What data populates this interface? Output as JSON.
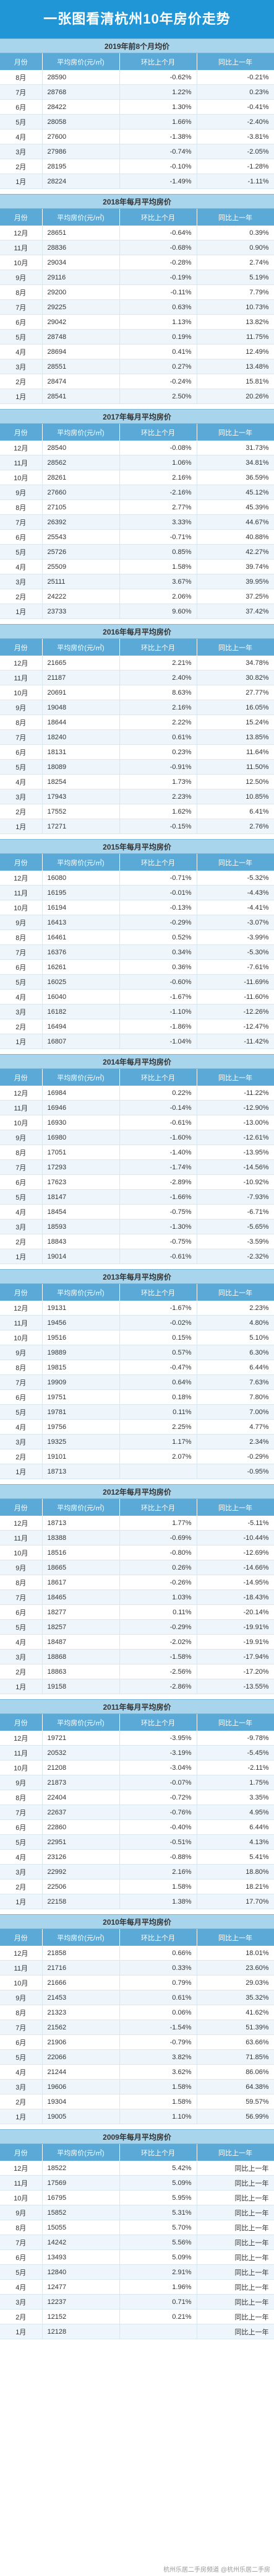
{
  "title": "一张图看清杭州10年房价走势",
  "headers": [
    "月份",
    "平均房价(元/㎡)",
    "环比上个月",
    "同比上一年"
  ],
  "footer": "杭州乐居二手房频道 @杭州乐居二手房",
  "sections": [
    {
      "title": "2019年前8个月均价",
      "rows": [
        [
          "8月",
          "28590",
          "-0.62%",
          "-0.21%"
        ],
        [
          "7月",
          "28768",
          "1.22%",
          "0.23%"
        ],
        [
          "6月",
          "28422",
          "1.30%",
          "-0.41%"
        ],
        [
          "5月",
          "28058",
          "1.66%",
          "-2.40%"
        ],
        [
          "4月",
          "27600",
          "-1.38%",
          "-3.81%"
        ],
        [
          "3月",
          "27986",
          "-0.74%",
          "-2.05%"
        ],
        [
          "2月",
          "28195",
          "-0.10%",
          "-1.28%"
        ],
        [
          "1月",
          "28224",
          "-1.49%",
          "-1.11%"
        ]
      ]
    },
    {
      "title": "2018年每月平均房价",
      "rows": [
        [
          "12月",
          "28651",
          "-0.64%",
          "0.39%"
        ],
        [
          "11月",
          "28836",
          "-0.68%",
          "0.90%"
        ],
        [
          "10月",
          "29034",
          "-0.28%",
          "2.74%"
        ],
        [
          "9月",
          "29116",
          "-0.19%",
          "5.19%"
        ],
        [
          "8月",
          "29200",
          "-0.11%",
          "7.79%"
        ],
        [
          "7月",
          "29225",
          "0.63%",
          "10.73%"
        ],
        [
          "6月",
          "29042",
          "1.13%",
          "13.82%"
        ],
        [
          "5月",
          "28748",
          "0.19%",
          "11.75%"
        ],
        [
          "4月",
          "28694",
          "0.41%",
          "12.49%"
        ],
        [
          "3月",
          "28551",
          "0.27%",
          "13.48%"
        ],
        [
          "2月",
          "28474",
          "-0.24%",
          "15.81%"
        ],
        [
          "1月",
          "28541",
          "2.50%",
          "20.26%"
        ]
      ]
    },
    {
      "title": "2017年每月平均房价",
      "rows": [
        [
          "12月",
          "28540",
          "-0.08%",
          "31.73%"
        ],
        [
          "11月",
          "28562",
          "1.06%",
          "34.81%"
        ],
        [
          "10月",
          "28261",
          "2.16%",
          "36.59%"
        ],
        [
          "9月",
          "27660",
          "-2.16%",
          "45.12%"
        ],
        [
          "8月",
          "27105",
          "2.77%",
          "45.39%"
        ],
        [
          "7月",
          "26392",
          "3.33%",
          "44.67%"
        ],
        [
          "6月",
          "25543",
          "-0.71%",
          "40.88%"
        ],
        [
          "5月",
          "25726",
          "0.85%",
          "42.27%"
        ],
        [
          "4月",
          "25509",
          "1.58%",
          "39.74%"
        ],
        [
          "3月",
          "25111",
          "3.67%",
          "39.95%"
        ],
        [
          "2月",
          "24222",
          "2.06%",
          "37.25%"
        ],
        [
          "1月",
          "23733",
          "9.60%",
          "37.42%"
        ]
      ]
    },
    {
      "title": "2016年每月平均房价",
      "rows": [
        [
          "12月",
          "21665",
          "2.21%",
          "34.78%"
        ],
        [
          "11月",
          "21187",
          "2.40%",
          "30.82%"
        ],
        [
          "10月",
          "20691",
          "8.63%",
          "27.77%"
        ],
        [
          "9月",
          "19048",
          "2.16%",
          "16.05%"
        ],
        [
          "8月",
          "18644",
          "2.22%",
          "15.24%"
        ],
        [
          "7月",
          "18240",
          "0.61%",
          "13.85%"
        ],
        [
          "6月",
          "18131",
          "0.23%",
          "11.64%"
        ],
        [
          "5月",
          "18089",
          "-0.91%",
          "11.50%"
        ],
        [
          "4月",
          "18254",
          "1.73%",
          "12.50%"
        ],
        [
          "3月",
          "17943",
          "2.23%",
          "10.85%"
        ],
        [
          "2月",
          "17552",
          "1.62%",
          "6.41%"
        ],
        [
          "1月",
          "17271",
          "-0.15%",
          "2.76%"
        ]
      ]
    },
    {
      "title": "2015年每月平均房价",
      "rows": [
        [
          "12月",
          "16080",
          "-0.71%",
          "-5.32%"
        ],
        [
          "11月",
          "16195",
          "-0.01%",
          "-4.43%"
        ],
        [
          "10月",
          "16194",
          "-0.13%",
          "-4.41%"
        ],
        [
          "9月",
          "16413",
          "-0.29%",
          "-3.07%"
        ],
        [
          "8月",
          "16461",
          "0.52%",
          "-3.99%"
        ],
        [
          "7月",
          "16376",
          "0.34%",
          "-5.30%"
        ],
        [
          "6月",
          "16261",
          "0.36%",
          "-7.61%"
        ],
        [
          "5月",
          "16025",
          "-0.60%",
          "-11.69%"
        ],
        [
          "4月",
          "16040",
          "-1.67%",
          "-11.60%"
        ],
        [
          "3月",
          "16182",
          "-1.10%",
          "-12.26%"
        ],
        [
          "2月",
          "16494",
          "-1.86%",
          "-12.47%"
        ],
        [
          "1月",
          "16807",
          "-1.04%",
          "-11.42%"
        ]
      ]
    },
    {
      "title": "2014年每月平均房价",
      "rows": [
        [
          "12月",
          "16984",
          "0.22%",
          "-11.22%"
        ],
        [
          "11月",
          "16946",
          "-0.14%",
          "-12.90%"
        ],
        [
          "10月",
          "16930",
          "-0.61%",
          "-13.00%"
        ],
        [
          "9月",
          "16980",
          "-1.60%",
          "-12.61%"
        ],
        [
          "8月",
          "17051",
          "-1.40%",
          "-13.95%"
        ],
        [
          "7月",
          "17293",
          "-1.74%",
          "-14.56%"
        ],
        [
          "6月",
          "17623",
          "-2.89%",
          "-10.92%"
        ],
        [
          "5月",
          "18147",
          "-1.66%",
          "-7.93%"
        ],
        [
          "4月",
          "18454",
          "-0.75%",
          "-6.71%"
        ],
        [
          "3月",
          "18593",
          "-1.30%",
          "-5.65%"
        ],
        [
          "2月",
          "18843",
          "-0.75%",
          "-3.59%"
        ],
        [
          "1月",
          "19014",
          "-0.61%",
          "-2.32%"
        ]
      ]
    },
    {
      "title": "2013年每月平均房价",
      "rows": [
        [
          "12月",
          "19131",
          "-1.67%",
          "2.23%"
        ],
        [
          "11月",
          "19456",
          "-0.02%",
          "4.80%"
        ],
        [
          "10月",
          "19516",
          "0.15%",
          "5.10%"
        ],
        [
          "9月",
          "19889",
          "0.57%",
          "6.30%"
        ],
        [
          "8月",
          "19815",
          "-0.47%",
          "6.44%"
        ],
        [
          "7月",
          "19909",
          "0.64%",
          "7.63%"
        ],
        [
          "6月",
          "19751",
          "0.18%",
          "7.80%"
        ],
        [
          "5月",
          "19781",
          "0.11%",
          "7.00%"
        ],
        [
          "4月",
          "19756",
          "2.25%",
          "4.77%"
        ],
        [
          "3月",
          "19325",
          "1.17%",
          "2.34%"
        ],
        [
          "2月",
          "19101",
          "2.07%",
          "-0.29%"
        ],
        [
          "1月",
          "18713",
          "",
          "-0.95%"
        ]
      ]
    },
    {
      "title": "2012年每月平均房价",
      "rows": [
        [
          "12月",
          "18713",
          "1.77%",
          "-5.11%"
        ],
        [
          "11月",
          "18388",
          "-0.69%",
          "-10.44%"
        ],
        [
          "10月",
          "18516",
          "-0.80%",
          "-12.69%"
        ],
        [
          "9月",
          "18665",
          "0.26%",
          "-14.66%"
        ],
        [
          "8月",
          "18617",
          "-0.26%",
          "-14.95%"
        ],
        [
          "7月",
          "18465",
          "1.03%",
          "-18.43%"
        ],
        [
          "6月",
          "18277",
          "0.11%",
          "-20.14%"
        ],
        [
          "5月",
          "18257",
          "-0.29%",
          "-19.91%"
        ],
        [
          "4月",
          "18487",
          "-2.02%",
          "-19.91%"
        ],
        [
          "3月",
          "18868",
          "-1.58%",
          "-17.94%"
        ],
        [
          "2月",
          "18863",
          "-2.56%",
          "-17.20%"
        ],
        [
          "1月",
          "19158",
          "-2.86%",
          "-13.55%"
        ]
      ]
    },
    {
      "title": "2011年每月平均房价",
      "rows": [
        [
          "12月",
          "19721",
          "-3.95%",
          "-9.78%"
        ],
        [
          "11月",
          "20532",
          "-3.19%",
          "-5.45%"
        ],
        [
          "10月",
          "21208",
          "-3.04%",
          "-2.11%"
        ],
        [
          "9月",
          "21873",
          "-0.07%",
          "1.75%"
        ],
        [
          "8月",
          "22404",
          "-0.72%",
          "3.35%"
        ],
        [
          "7月",
          "22637",
          "-0.76%",
          "4.95%"
        ],
        [
          "6月",
          "22860",
          "-0.40%",
          "6.44%"
        ],
        [
          "5月",
          "22951",
          "-0.51%",
          "4.13%"
        ],
        [
          "4月",
          "23126",
          "-0.88%",
          "5.41%"
        ],
        [
          "3月",
          "22992",
          "2.16%",
          "18.80%"
        ],
        [
          "2月",
          "22506",
          "1.58%",
          "18.21%"
        ],
        [
          "1月",
          "22158",
          "1.38%",
          "17.70%"
        ]
      ]
    },
    {
      "title": "2010年每月平均房价",
      "rows": [
        [
          "12月",
          "21858",
          "0.66%",
          "18.01%"
        ],
        [
          "11月",
          "21716",
          "0.33%",
          "23.60%"
        ],
        [
          "10月",
          "21666",
          "0.79%",
          "29.03%"
        ],
        [
          "9月",
          "21453",
          "0.61%",
          "35.32%"
        ],
        [
          "8月",
          "21323",
          "0.06%",
          "41.62%"
        ],
        [
          "7月",
          "21562",
          "-1.54%",
          "51.39%"
        ],
        [
          "6月",
          "21906",
          "-0.79%",
          "63.66%"
        ],
        [
          "5月",
          "22066",
          "3.82%",
          "71.85%"
        ],
        [
          "4月",
          "21244",
          "3.62%",
          "86.06%"
        ],
        [
          "3月",
          "19606",
          "1.58%",
          "64.38%"
        ],
        [
          "2月",
          "19304",
          "1.58%",
          "59.57%"
        ],
        [
          "1月",
          "19005",
          "1.10%",
          "56.99%"
        ]
      ]
    },
    {
      "title": "2009年每月平均房价",
      "rows": [
        [
          "12月",
          "18522",
          "5.42%",
          "同比上一年"
        ],
        [
          "11月",
          "17569",
          "5.09%",
          "同比上一年"
        ],
        [
          "10月",
          "16795",
          "5.95%",
          "同比上一年"
        ],
        [
          "9月",
          "15852",
          "5.31%",
          "同比上一年"
        ],
        [
          "8月",
          "15055",
          "5.70%",
          "同比上一年"
        ],
        [
          "7月",
          "14242",
          "5.56%",
          "同比上一年"
        ],
        [
          "6月",
          "13493",
          "5.09%",
          "同比上一年"
        ],
        [
          "5月",
          "12840",
          "2.91%",
          "同比上一年"
        ],
        [
          "4月",
          "12477",
          "1.96%",
          "同比上一年"
        ],
        [
          "3月",
          "12237",
          "0.71%",
          "同比上一年"
        ],
        [
          "2月",
          "12152",
          "0.21%",
          "同比上一年"
        ],
        [
          "1月",
          "12128",
          "",
          "同比上一年"
        ]
      ]
    }
  ]
}
